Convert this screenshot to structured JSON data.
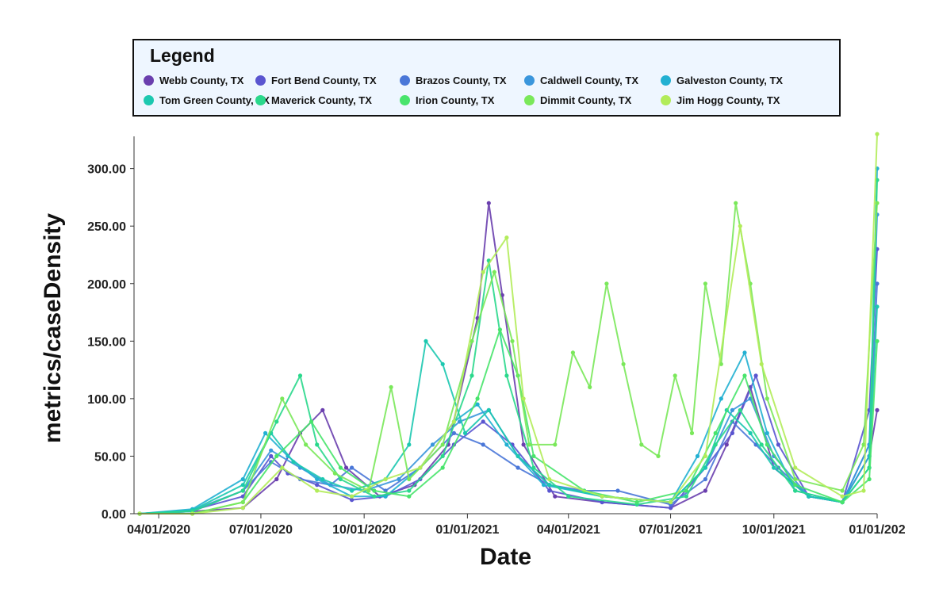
{
  "legend": {
    "title": "Legend",
    "items": [
      {
        "label": "Webb County, TX",
        "color": "#6a3fae"
      },
      {
        "label": "Fort Bend County, TX",
        "color": "#5a55d0"
      },
      {
        "label": "Brazos County, TX",
        "color": "#4a77d8"
      },
      {
        "label": "Caldwell County, TX",
        "color": "#3a96dc"
      },
      {
        "label": "Galveston County, TX",
        "color": "#22b0d2"
      },
      {
        "label": "Tom Green County, TX",
        "color": "#1cc8b0"
      },
      {
        "label": "Maverick County, TX",
        "color": "#2ad88c"
      },
      {
        "label": "Irion County, TX",
        "color": "#48e46c"
      },
      {
        "label": "Dimmit County, TX",
        "color": "#7ae85a"
      },
      {
        "label": "Jim Hogg County, TX",
        "color": "#b2ec5a"
      }
    ]
  },
  "chart_data": {
    "type": "line",
    "xlabel": "Date",
    "ylabel": "metrics/caseDensity",
    "x_ticks": [
      "04/01/2020",
      "07/01/2020",
      "10/01/2020",
      "01/01/2021",
      "04/01/2021",
      "07/01/2021",
      "10/01/2021",
      "01/01/202"
    ],
    "y_ticks": [
      "0.00",
      "50.00",
      "100.00",
      "150.00",
      "200.00",
      "250.00",
      "300.00"
    ],
    "xlim": [
      "2020-03-10",
      "2022-01-01"
    ],
    "ylim": [
      0,
      328
    ],
    "series": [
      {
        "name": "Webb County, TX",
        "color": "#6a3fae",
        "points": [
          [
            "2020-03-15",
            0
          ],
          [
            "2020-05-01",
            2
          ],
          [
            "2020-06-15",
            5
          ],
          [
            "2020-07-15",
            30
          ],
          [
            "2020-08-05",
            70
          ],
          [
            "2020-08-25",
            90
          ],
          [
            "2020-09-15",
            40
          ],
          [
            "2020-10-15",
            15
          ],
          [
            "2020-11-15",
            25
          ],
          [
            "2020-12-15",
            60
          ],
          [
            "2021-01-10",
            170
          ],
          [
            "2021-01-20",
            270
          ],
          [
            "2021-02-01",
            190
          ],
          [
            "2021-02-20",
            60
          ],
          [
            "2021-03-20",
            15
          ],
          [
            "2021-05-01",
            10
          ],
          [
            "2021-07-01",
            5
          ],
          [
            "2021-08-01",
            20
          ],
          [
            "2021-08-20",
            60
          ],
          [
            "2021-09-10",
            110
          ],
          [
            "2021-10-01",
            40
          ],
          [
            "2021-11-01",
            15
          ],
          [
            "2021-12-01",
            10
          ],
          [
            "2021-12-25",
            50
          ],
          [
            "2022-01-01",
            90
          ]
        ]
      },
      {
        "name": "Fort Bend County, TX",
        "color": "#5a55d0",
        "points": [
          [
            "2020-03-15",
            0
          ],
          [
            "2020-05-01",
            3
          ],
          [
            "2020-06-15",
            15
          ],
          [
            "2020-07-10",
            50
          ],
          [
            "2020-07-25",
            35
          ],
          [
            "2020-08-20",
            25
          ],
          [
            "2020-09-20",
            12
          ],
          [
            "2020-10-20",
            15
          ],
          [
            "2020-11-20",
            30
          ],
          [
            "2020-12-20",
            60
          ],
          [
            "2021-01-15",
            80
          ],
          [
            "2021-02-10",
            60
          ],
          [
            "2021-03-15",
            20
          ],
          [
            "2021-05-01",
            10
          ],
          [
            "2021-07-01",
            5
          ],
          [
            "2021-08-01",
            40
          ],
          [
            "2021-08-25",
            70
          ],
          [
            "2021-09-15",
            120
          ],
          [
            "2021-10-05",
            60
          ],
          [
            "2021-11-01",
            15
          ],
          [
            "2021-12-01",
            10
          ],
          [
            "2021-12-25",
            90
          ],
          [
            "2022-01-01",
            230
          ]
        ]
      },
      {
        "name": "Brazos County, TX",
        "color": "#4a77d8",
        "points": [
          [
            "2020-03-15",
            0
          ],
          [
            "2020-05-01",
            2
          ],
          [
            "2020-06-15",
            20
          ],
          [
            "2020-07-10",
            45
          ],
          [
            "2020-08-05",
            30
          ],
          [
            "2020-09-01",
            25
          ],
          [
            "2020-09-20",
            40
          ],
          [
            "2020-10-20",
            20
          ],
          [
            "2020-11-20",
            40
          ],
          [
            "2020-12-20",
            70
          ],
          [
            "2021-01-15",
            60
          ],
          [
            "2021-02-15",
            40
          ],
          [
            "2021-03-15",
            25
          ],
          [
            "2021-04-15",
            20
          ],
          [
            "2021-05-15",
            20
          ],
          [
            "2021-07-01",
            8
          ],
          [
            "2021-08-01",
            30
          ],
          [
            "2021-08-25",
            80
          ],
          [
            "2021-09-15",
            60
          ],
          [
            "2021-10-05",
            40
          ],
          [
            "2021-11-01",
            15
          ],
          [
            "2021-12-01",
            10
          ],
          [
            "2021-12-25",
            60
          ],
          [
            "2022-01-01",
            200
          ]
        ]
      },
      {
        "name": "Caldwell County, TX",
        "color": "#3a96dc",
        "points": [
          [
            "2020-03-15",
            0
          ],
          [
            "2020-05-01",
            3
          ],
          [
            "2020-06-15",
            20
          ],
          [
            "2020-07-10",
            55
          ],
          [
            "2020-08-05",
            40
          ],
          [
            "2020-09-01",
            25
          ],
          [
            "2020-10-01",
            20
          ],
          [
            "2020-11-01",
            30
          ],
          [
            "2020-12-01",
            60
          ],
          [
            "2020-12-25",
            80
          ],
          [
            "2021-01-20",
            90
          ],
          [
            "2021-02-15",
            50
          ],
          [
            "2021-03-15",
            25
          ],
          [
            "2021-05-01",
            15
          ],
          [
            "2021-07-01",
            10
          ],
          [
            "2021-08-01",
            40
          ],
          [
            "2021-08-25",
            90
          ],
          [
            "2021-09-10",
            100
          ],
          [
            "2021-10-01",
            50
          ],
          [
            "2021-11-01",
            15
          ],
          [
            "2021-12-01",
            10
          ],
          [
            "2021-12-25",
            60
          ],
          [
            "2022-01-01",
            260
          ]
        ]
      },
      {
        "name": "Galveston County, TX",
        "color": "#22b0d2",
        "points": [
          [
            "2020-03-15",
            0
          ],
          [
            "2020-05-01",
            4
          ],
          [
            "2020-06-15",
            30
          ],
          [
            "2020-07-05",
            70
          ],
          [
            "2020-07-25",
            50
          ],
          [
            "2020-08-20",
            30
          ],
          [
            "2020-09-20",
            15
          ],
          [
            "2020-10-20",
            15
          ],
          [
            "2020-11-20",
            40
          ],
          [
            "2020-12-20",
            80
          ],
          [
            "2021-01-10",
            95
          ],
          [
            "2021-02-05",
            60
          ],
          [
            "2021-03-10",
            25
          ],
          [
            "2021-05-01",
            15
          ],
          [
            "2021-07-01",
            10
          ],
          [
            "2021-07-25",
            50
          ],
          [
            "2021-08-15",
            100
          ],
          [
            "2021-09-05",
            140
          ],
          [
            "2021-09-25",
            70
          ],
          [
            "2021-10-20",
            20
          ],
          [
            "2021-12-01",
            10
          ],
          [
            "2021-12-25",
            50
          ],
          [
            "2022-01-01",
            300
          ]
        ]
      },
      {
        "name": "Tom Green County, TX",
        "color": "#1cc8b0",
        "points": [
          [
            "2020-03-15",
            0
          ],
          [
            "2020-05-01",
            3
          ],
          [
            "2020-06-15",
            25
          ],
          [
            "2020-07-10",
            70
          ],
          [
            "2020-07-30",
            45
          ],
          [
            "2020-08-25",
            30
          ],
          [
            "2020-09-20",
            20
          ],
          [
            "2020-10-20",
            30
          ],
          [
            "2020-11-10",
            60
          ],
          [
            "2020-11-25",
            150
          ],
          [
            "2020-12-10",
            130
          ],
          [
            "2020-12-30",
            70
          ],
          [
            "2021-01-20",
            90
          ],
          [
            "2021-02-15",
            50
          ],
          [
            "2021-03-15",
            25
          ],
          [
            "2021-05-01",
            15
          ],
          [
            "2021-07-01",
            10
          ],
          [
            "2021-08-01",
            40
          ],
          [
            "2021-08-20",
            90
          ],
          [
            "2021-09-10",
            70
          ],
          [
            "2021-10-01",
            40
          ],
          [
            "2021-11-01",
            15
          ],
          [
            "2021-12-01",
            10
          ],
          [
            "2021-12-25",
            40
          ],
          [
            "2022-01-01",
            180
          ]
        ]
      },
      {
        "name": "Maverick County, TX",
        "color": "#2ad88c",
        "points": [
          [
            "2020-03-15",
            0
          ],
          [
            "2020-05-01",
            2
          ],
          [
            "2020-06-15",
            20
          ],
          [
            "2020-07-15",
            80
          ],
          [
            "2020-08-05",
            120
          ],
          [
            "2020-08-20",
            60
          ],
          [
            "2020-09-10",
            30
          ],
          [
            "2020-10-10",
            15
          ],
          [
            "2020-11-10",
            20
          ],
          [
            "2020-12-10",
            50
          ],
          [
            "2021-01-05",
            120
          ],
          [
            "2021-01-20",
            220
          ],
          [
            "2021-02-05",
            120
          ],
          [
            "2021-03-01",
            40
          ],
          [
            "2021-04-01",
            15
          ],
          [
            "2021-06-01",
            8
          ],
          [
            "2021-07-15",
            15
          ],
          [
            "2021-08-10",
            60
          ],
          [
            "2021-09-01",
            90
          ],
          [
            "2021-09-20",
            60
          ],
          [
            "2021-10-20",
            20
          ],
          [
            "2021-12-01",
            10
          ],
          [
            "2021-12-25",
            40
          ],
          [
            "2022-01-01",
            290
          ]
        ]
      },
      {
        "name": "Irion County, TX",
        "color": "#48e46c",
        "points": [
          [
            "2020-03-15",
            0
          ],
          [
            "2020-05-01",
            0
          ],
          [
            "2020-06-15",
            10
          ],
          [
            "2020-07-15",
            50
          ],
          [
            "2020-08-15",
            80
          ],
          [
            "2020-09-10",
            40
          ],
          [
            "2020-10-10",
            20
          ],
          [
            "2020-11-10",
            15
          ],
          [
            "2020-12-10",
            40
          ],
          [
            "2021-01-10",
            100
          ],
          [
            "2021-01-30",
            160
          ],
          [
            "2021-02-15",
            120
          ],
          [
            "2021-03-01",
            50
          ],
          [
            "2021-04-15",
            20
          ],
          [
            "2021-06-01",
            10
          ],
          [
            "2021-07-15",
            20
          ],
          [
            "2021-08-10",
            70
          ],
          [
            "2021-09-05",
            120
          ],
          [
            "2021-09-25",
            60
          ],
          [
            "2021-10-20",
            25
          ],
          [
            "2021-12-01",
            10
          ],
          [
            "2021-12-25",
            30
          ],
          [
            "2022-01-01",
            150
          ]
        ]
      },
      {
        "name": "Dimmit County, TX",
        "color": "#7ae85a",
        "points": [
          [
            "2020-03-15",
            0
          ],
          [
            "2020-05-01",
            0
          ],
          [
            "2020-06-15",
            10
          ],
          [
            "2020-07-20",
            100
          ],
          [
            "2020-08-10",
            60
          ],
          [
            "2020-09-05",
            35
          ],
          [
            "2020-10-05",
            20
          ],
          [
            "2020-10-25",
            110
          ],
          [
            "2020-11-10",
            30
          ],
          [
            "2020-12-10",
            60
          ],
          [
            "2021-01-05",
            150
          ],
          [
            "2021-01-25",
            210
          ],
          [
            "2021-02-10",
            150
          ],
          [
            "2021-02-25",
            60
          ],
          [
            "2021-03-20",
            60
          ],
          [
            "2021-04-05",
            140
          ],
          [
            "2021-04-20",
            110
          ],
          [
            "2021-05-05",
            200
          ],
          [
            "2021-05-20",
            130
          ],
          [
            "2021-06-05",
            60
          ],
          [
            "2021-06-20",
            50
          ],
          [
            "2021-07-05",
            120
          ],
          [
            "2021-07-20",
            70
          ],
          [
            "2021-08-01",
            200
          ],
          [
            "2021-08-15",
            130
          ],
          [
            "2021-08-28",
            270
          ],
          [
            "2021-09-10",
            200
          ],
          [
            "2021-09-25",
            100
          ],
          [
            "2021-10-20",
            30
          ],
          [
            "2021-12-01",
            20
          ],
          [
            "2021-12-20",
            60
          ],
          [
            "2022-01-01",
            270
          ]
        ]
      },
      {
        "name": "Jim Hogg County, TX",
        "color": "#b2ec5a",
        "points": [
          [
            "2020-03-15",
            0
          ],
          [
            "2020-05-01",
            0
          ],
          [
            "2020-06-15",
            5
          ],
          [
            "2020-07-20",
            40
          ],
          [
            "2020-08-20",
            20
          ],
          [
            "2020-09-20",
            15
          ],
          [
            "2020-10-20",
            30
          ],
          [
            "2020-11-20",
            40
          ],
          [
            "2020-12-20",
            80
          ],
          [
            "2021-01-15",
            210
          ],
          [
            "2021-02-05",
            240
          ],
          [
            "2021-02-20",
            100
          ],
          [
            "2021-03-15",
            30
          ],
          [
            "2021-05-01",
            15
          ],
          [
            "2021-07-01",
            10
          ],
          [
            "2021-08-01",
            50
          ],
          [
            "2021-09-01",
            250
          ],
          [
            "2021-09-20",
            130
          ],
          [
            "2021-10-20",
            40
          ],
          [
            "2021-12-01",
            15
          ],
          [
            "2021-12-20",
            20
          ],
          [
            "2022-01-01",
            330
          ]
        ]
      }
    ]
  }
}
